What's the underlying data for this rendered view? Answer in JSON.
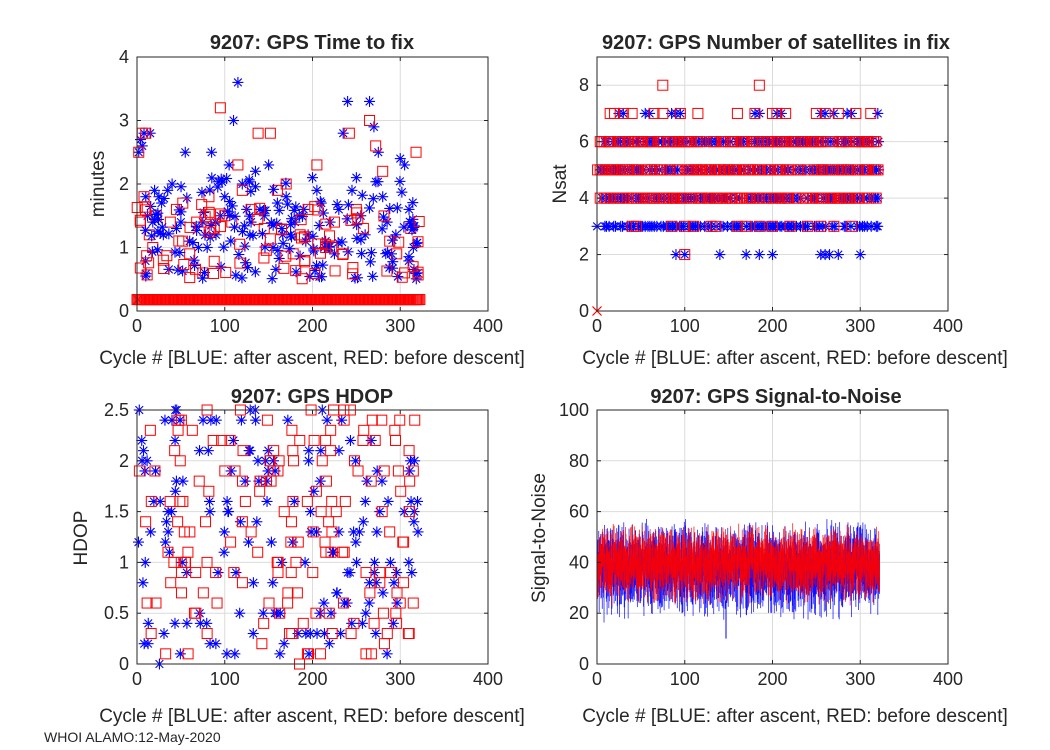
{
  "footer": "WHOI ALAMO:12-May-2020",
  "colors": {
    "blue": "#0000ff",
    "red": "#ff0000",
    "grid": "#dcdcdc",
    "axis": "#262626"
  },
  "chart_data": [
    {
      "id": "time_to_fix",
      "type": "scatter",
      "title": "9207: GPS Time to fix",
      "xlabel": "Cycle #  [BLUE: after ascent, RED: before descent]",
      "ylabel": "minutes",
      "xlim": [
        0,
        400
      ],
      "ylim": [
        0,
        4
      ],
      "xticks": [
        0,
        100,
        200,
        300,
        400
      ],
      "yticks": [
        0,
        1,
        2,
        3,
        4
      ],
      "grid": true,
      "series": [
        {
          "name": "after ascent",
          "color": "blue",
          "marker": "asterisk",
          "x": [
            2,
            4,
            6,
            8,
            10,
            12,
            15,
            18,
            20,
            25,
            28,
            30,
            35,
            40,
            45,
            50,
            55,
            60,
            65,
            70,
            75,
            80,
            85,
            90,
            95,
            100,
            105,
            110,
            115,
            120,
            125,
            130,
            135,
            140,
            145,
            150,
            155,
            160,
            165,
            170,
            175,
            180,
            185,
            190,
            195,
            200,
            205,
            210,
            215,
            220,
            225,
            230,
            235,
            240,
            245,
            250,
            255,
            260,
            265,
            270,
            275,
            280,
            285,
            290,
            295,
            300,
            305,
            310,
            315,
            320
          ],
          "y": [
            2.5,
            2.7,
            2.6,
            2.8,
            1.8,
            1.5,
            2.8,
            1.4,
            1.9,
            1.8,
            1.7,
            1.2,
            1.9,
            2.0,
            1.3,
            1.4,
            2.5,
            1.1,
            0.8,
            1.0,
            1.4,
            1.0,
            2.5,
            1.2,
            1.5,
            1.8,
            2.3,
            3.0,
            3.6,
            2.0,
            1.6,
            1.4,
            2.2,
            1.6,
            1.5,
            2.3,
            1.0,
            1.7,
            1.3,
            1.8,
            1.2,
            1.4,
            1.5,
            1.6,
            1.2,
            2.1,
            1.9,
            1.7,
            1.1,
            1.4,
            0.9,
            1.6,
            2.8,
            3.3,
            1.9,
            2.1,
            1.5,
            1.2,
            3.3,
            2.9,
            2.5,
            1.8,
            1.4,
            0.9,
            1.2,
            2.4,
            2.3,
            1.6,
            1.0,
            0.6
          ]
        },
        {
          "name": "before descent",
          "color": "red",
          "marker": "square",
          "x": [
            2,
            4,
            6,
            8,
            10,
            14,
            18,
            22,
            30,
            38,
            45,
            52,
            60,
            68,
            75,
            82,
            88,
            95,
            100,
            108,
            115,
            120,
            130,
            138,
            145,
            152,
            160,
            170,
            178,
            186,
            195,
            205,
            215,
            225,
            235,
            242,
            250,
            258,
            265,
            272,
            280,
            288,
            296,
            305,
            312,
            318
          ],
          "y": [
            2.5,
            1.4,
            2.8,
            1.8,
            2.8,
            1.2,
            1.0,
            1.5,
            0.8,
            1.4,
            1.6,
            1.1,
            0.9,
            1.4,
            0.6,
            1.8,
            1.3,
            3.2,
            1.5,
            1.4,
            2.3,
            1.9,
            1.6,
            2.8,
            1.3,
            2.8,
            1.9,
            2.0,
            0.9,
            1.2,
            1.6,
            2.3,
            1.0,
            1.4,
            0.9,
            2.8,
            1.6,
            1.3,
            3.0,
            2.6,
            2.2,
            1.1,
            0.9,
            0.6,
            1.3,
            2.5
          ]
        },
        {
          "name": "before descent (failed / floor values)",
          "color": "red",
          "marker": "square",
          "y_constant": 0.18,
          "x_range": [
            0,
            323
          ]
        }
      ]
    },
    {
      "id": "nsat",
      "type": "scatter",
      "title": "9207: GPS Number of satellites in fix",
      "xlabel": "Cycle #  [BLUE: after ascent, RED: before descent]",
      "ylabel": "Nsat",
      "xlim": [
        0,
        400
      ],
      "ylim": [
        0,
        9
      ],
      "xticks": [
        0,
        100,
        200,
        300,
        400
      ],
      "yticks": [
        0,
        2,
        4,
        6,
        8
      ],
      "grid": true,
      "series": [
        {
          "name": "after ascent (Nsat=2)",
          "color": "blue",
          "marker": "asterisk",
          "y": 2,
          "x": [
            90,
            100,
            140,
            170,
            185,
            200,
            255,
            260,
            265,
            275,
            300
          ]
        },
        {
          "name": "after ascent (Nsat=3)",
          "color": "blue",
          "marker": "asterisk",
          "y": 3,
          "x_range": [
            0,
            322
          ]
        },
        {
          "name": "after ascent (Nsat=4)",
          "color": "blue",
          "marker": "asterisk",
          "y": 4,
          "x_range": [
            0,
            322
          ]
        },
        {
          "name": "after ascent (Nsat=5)",
          "color": "blue",
          "marker": "asterisk",
          "y": 5,
          "x_range": [
            0,
            322
          ]
        },
        {
          "name": "after ascent (Nsat=6)",
          "color": "blue",
          "marker": "asterisk",
          "x_range": [
            0,
            322
          ],
          "y": 6
        },
        {
          "name": "after ascent (Nsat=7)",
          "color": "blue",
          "marker": "asterisk",
          "y": 7,
          "x": [
            25,
            30,
            55,
            60,
            85,
            90,
            95,
            180,
            185,
            205,
            210,
            255,
            260,
            270,
            285,
            290,
            320
          ]
        },
        {
          "name": "before descent (Nsat=8)",
          "color": "red",
          "marker": "square",
          "y": 8,
          "x": [
            75,
            185
          ]
        },
        {
          "name": "before descent (Nsat=7)",
          "color": "red",
          "marker": "square",
          "y": 7,
          "x": [
            15,
            20,
            30,
            40,
            65,
            75,
            95,
            115,
            160,
            180,
            200,
            205,
            215,
            250,
            260,
            275,
            295,
            312
          ]
        },
        {
          "name": "before descent (Nsat=6)",
          "color": "red",
          "marker": "square",
          "y": 6,
          "x_range": [
            0,
            322
          ]
        },
        {
          "name": "before descent (Nsat=5)",
          "color": "red",
          "marker": "square",
          "y": 5,
          "x_range": [
            0,
            322
          ]
        },
        {
          "name": "before descent (Nsat=4)",
          "color": "red",
          "marker": "square",
          "y": 4,
          "x_range": [
            0,
            322
          ]
        },
        {
          "name": "before descent (Nsat=3)",
          "color": "red",
          "marker": "square",
          "y": 3,
          "x": [
            40,
            45,
            85,
            100,
            110,
            130,
            135,
            160,
            170,
            185,
            200,
            220,
            240,
            255,
            270,
            290
          ]
        },
        {
          "name": "before descent (Nsat=2)",
          "color": "red",
          "marker": "square",
          "y": 2,
          "x": [
            100
          ]
        },
        {
          "name": "no fix",
          "color": "red",
          "marker": "cross",
          "y": 0,
          "x": [
            0
          ]
        }
      ]
    },
    {
      "id": "hdop",
      "type": "scatter",
      "title": "9207: GPS HDOP",
      "xlabel": "Cycle #  [BLUE: after ascent, RED: before descent]",
      "ylabel": "HDOP",
      "xlim": [
        0,
        400
      ],
      "ylim": [
        0,
        2.5
      ],
      "xticks": [
        0,
        100,
        200,
        300,
        400
      ],
      "yticks": [
        0,
        0.5,
        1,
        1.5,
        2,
        2.5
      ],
      "ytick_labels": [
        "0",
        "0.5",
        "1",
        "1.5",
        "2",
        "2.5"
      ],
      "grid": true,
      "series": [
        {
          "name": "after ascent",
          "color": "blue",
          "marker": "asterisk",
          "x_range": [
            0,
            322
          ],
          "y_min": 0,
          "y_max": 2.5,
          "count": 170
        },
        {
          "name": "before descent",
          "color": "red",
          "marker": "square",
          "x_range": [
            0,
            322
          ],
          "y_min": 0,
          "y_max": 2.5,
          "count": 170
        }
      ]
    },
    {
      "id": "snr",
      "type": "line",
      "title": "9207: GPS Signal-to-Noise",
      "xlabel": "Cycle #  [BLUE: after ascent, RED: before descent]",
      "ylabel": "Signal-to-Noise",
      "xlim": [
        0,
        400
      ],
      "ylim": [
        0,
        100
      ],
      "xticks": [
        0,
        100,
        200,
        300,
        400
      ],
      "yticks": [
        0,
        20,
        40,
        60,
        80,
        100
      ],
      "grid": true,
      "series": [
        {
          "name": "after ascent",
          "color": "blue",
          "style": "errorbar",
          "x_range": [
            0,
            322
          ],
          "mean": 38,
          "spread": 12,
          "min_outlier": 10
        },
        {
          "name": "before descent",
          "color": "red",
          "style": "errorbar",
          "x_range": [
            0,
            322
          ],
          "mean": 40,
          "spread": 9
        }
      ]
    }
  ]
}
